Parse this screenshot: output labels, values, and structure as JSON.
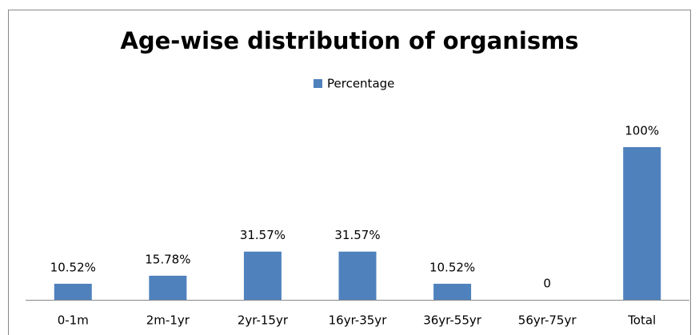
{
  "chart_data": {
    "type": "bar",
    "title": "Age-wise distribution of organisms",
    "categories": [
      "0-1m",
      "2m-1yr",
      "2yr-15yr",
      "16yr-35yr",
      "36yr-55yr",
      "56yr-75yr",
      "Total"
    ],
    "series": [
      {
        "name": "Percentage",
        "color": "#4f81bd",
        "values": [
          10.52,
          15.78,
          31.57,
          31.57,
          10.52,
          0,
          100
        ],
        "value_labels": [
          "10.52%",
          "15.78%",
          "31.57%",
          "31.57%",
          "10.52%",
          "0",
          "100%"
        ]
      }
    ],
    "legend": "top"
  }
}
